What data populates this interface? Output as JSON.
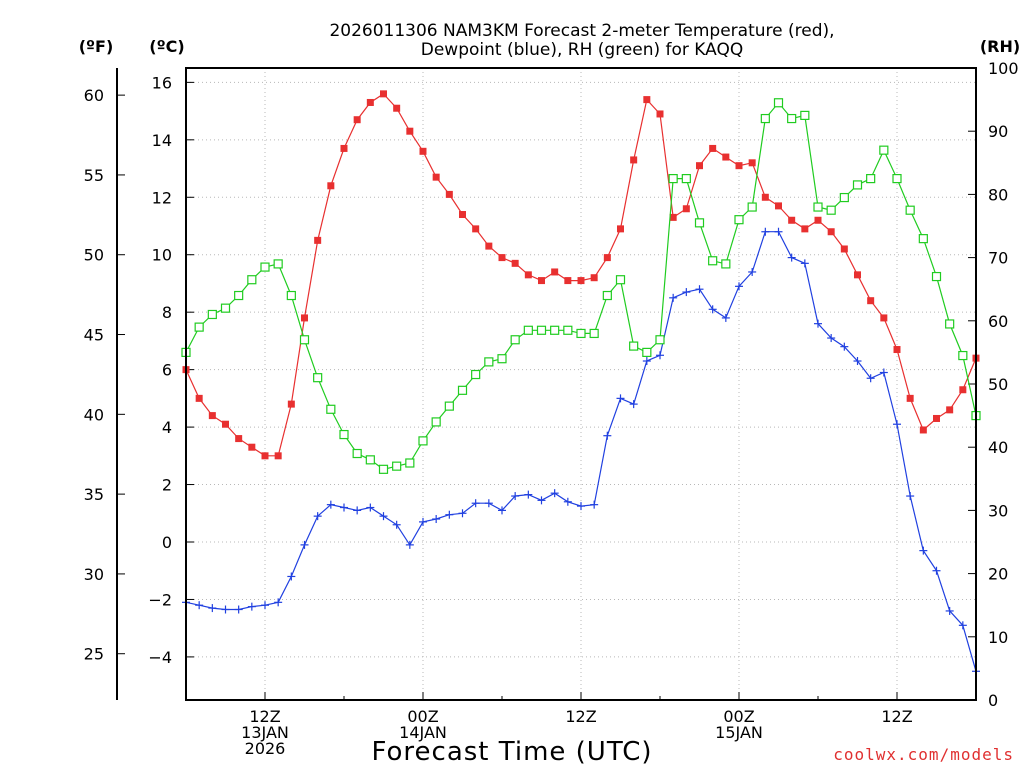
{
  "chart_data": {
    "type": "line",
    "title_line1": "2026011306 NAM3KM Forecast 2-meter Temperature (red),",
    "title_line2": "Dewpoint (blue), RH (green) for KAQQ",
    "xlabel": "Forecast Time (UTC)",
    "credit": "coolwx.com/models",
    "unit_f": "(ºF)",
    "unit_c": "(ºC)",
    "unit_rh": "(RH)",
    "grid": true,
    "ylim_c": [
      -5.5,
      16.5
    ],
    "ylim_rh": [
      0,
      100
    ],
    "yticks_c": [
      "16",
      "14",
      "12",
      "10",
      "8",
      "6",
      "4",
      "2",
      "0",
      "−2",
      "−4"
    ],
    "yticks_f": [
      "60",
      "55",
      "50",
      "45",
      "40",
      "35",
      "30",
      "25"
    ],
    "yticks_rh": [
      "100",
      "90",
      "80",
      "70",
      "60",
      "50",
      "40",
      "30",
      "20",
      "10",
      "0"
    ],
    "xlim_hours": [
      6,
      66
    ],
    "x_ticks": [
      {
        "hour": 12,
        "lines": [
          "12Z",
          "13JAN",
          "2026"
        ]
      },
      {
        "hour": 24,
        "lines": [
          "00Z",
          "14JAN"
        ]
      },
      {
        "hour": 36,
        "lines": [
          "12Z"
        ]
      },
      {
        "hour": 48,
        "lines": [
          "00Z",
          "15JAN"
        ]
      },
      {
        "hour": 60,
        "lines": [
          "12Z"
        ]
      }
    ],
    "colors": {
      "temperature": "#e83030",
      "dewpoint": "#2040e0",
      "rh": "#20cc20"
    },
    "series": [
      {
        "name": "Temperature",
        "unit": "C",
        "x": [
          6,
          7,
          8,
          9,
          10,
          11,
          12,
          13,
          14,
          15,
          16,
          17,
          18,
          19,
          20,
          21,
          22,
          23,
          24,
          25,
          26,
          27,
          28,
          29,
          30,
          31,
          32,
          33,
          34,
          35,
          36,
          37,
          38,
          39,
          40,
          41,
          42,
          43,
          44,
          45,
          46,
          47,
          48,
          49,
          50,
          51,
          52,
          53,
          54,
          55,
          56,
          57,
          58,
          59,
          60,
          61,
          62,
          63,
          64,
          65,
          66
        ],
        "values": [
          6.0,
          5.0,
          4.4,
          4.1,
          3.6,
          3.3,
          3.0,
          3.0,
          4.8,
          7.8,
          10.5,
          12.4,
          13.7,
          14.7,
          15.3,
          15.6,
          15.1,
          14.3,
          13.6,
          12.7,
          12.1,
          11.4,
          10.9,
          10.3,
          9.9,
          9.7,
          9.3,
          9.1,
          9.4,
          9.1,
          9.1,
          9.2,
          9.9,
          10.9,
          13.3,
          15.4,
          14.9,
          11.3,
          11.6,
          13.1,
          13.7,
          13.4,
          13.1,
          13.2,
          12.0,
          11.7,
          11.2,
          10.9,
          11.2,
          10.8,
          10.2,
          9.3,
          8.4,
          7.8,
          6.7,
          5.0,
          3.9,
          4.3,
          4.6,
          5.3,
          6.4
        ]
      },
      {
        "name": "Dewpoint",
        "unit": "C",
        "x": [
          6,
          7,
          8,
          9,
          10,
          11,
          12,
          13,
          14,
          15,
          16,
          17,
          18,
          19,
          20,
          21,
          22,
          23,
          24,
          25,
          26,
          27,
          28,
          29,
          30,
          31,
          32,
          33,
          34,
          35,
          36,
          37,
          38,
          39,
          40,
          41,
          42,
          43,
          44,
          45,
          46,
          47,
          48,
          49,
          50,
          51,
          52,
          53,
          54,
          55,
          56,
          57,
          58,
          59,
          60,
          61,
          62,
          63,
          64,
          65,
          66
        ],
        "values": [
          -2.1,
          -2.2,
          -2.3,
          -2.35,
          -2.35,
          -2.25,
          -2.2,
          -2.1,
          -1.2,
          -0.1,
          0.9,
          1.3,
          1.2,
          1.1,
          1.2,
          0.9,
          0.6,
          -0.1,
          0.7,
          0.8,
          0.95,
          1.0,
          1.35,
          1.35,
          1.1,
          1.6,
          1.65,
          1.45,
          1.7,
          1.4,
          1.25,
          1.3,
          3.7,
          5.0,
          4.8,
          6.3,
          6.5,
          8.5,
          8.7,
          8.8,
          8.1,
          7.8,
          8.9,
          9.4,
          10.8,
          10.8,
          9.9,
          9.7,
          7.6,
          7.1,
          6.8,
          6.3,
          5.7,
          5.9,
          4.1,
          1.6,
          -0.3,
          -1.0,
          -2.4,
          -2.9,
          -4.5
        ]
      },
      {
        "name": "RH",
        "unit": "%",
        "x": [
          6,
          7,
          8,
          9,
          10,
          11,
          12,
          13,
          14,
          15,
          16,
          17,
          18,
          19,
          20,
          21,
          22,
          23,
          24,
          25,
          26,
          27,
          28,
          29,
          30,
          31,
          32,
          33,
          34,
          35,
          36,
          37,
          38,
          39,
          40,
          41,
          42,
          43,
          44,
          45,
          46,
          47,
          48,
          49,
          50,
          51,
          52,
          53,
          54,
          55,
          56,
          57,
          58,
          59,
          60,
          61,
          62,
          63,
          64,
          65,
          66
        ],
        "values": [
          55,
          59,
          61,
          62,
          64,
          66.5,
          68.5,
          69,
          64,
          57,
          51,
          46,
          42,
          39,
          38,
          36.5,
          37,
          37.5,
          41,
          44,
          46.5,
          49,
          51.5,
          53.5,
          54,
          57,
          58.5,
          58.5,
          58.5,
          58.5,
          58,
          58,
          64,
          66.5,
          56,
          55,
          57,
          82.5,
          82.5,
          75.5,
          69.5,
          69,
          76,
          78,
          92,
          94.5,
          92,
          92.5,
          78,
          77.5,
          79.5,
          81.5,
          82.5,
          87,
          82.5,
          77.5,
          73,
          67,
          59.5,
          54.5,
          45
        ]
      }
    ]
  }
}
